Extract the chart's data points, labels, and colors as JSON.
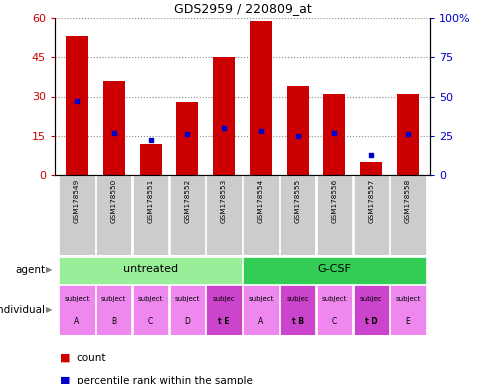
{
  "title": "GDS2959 / 220809_at",
  "samples": [
    "GSM178549",
    "GSM178550",
    "GSM178551",
    "GSM178552",
    "GSM178553",
    "GSM178554",
    "GSM178555",
    "GSM178556",
    "GSM178557",
    "GSM178558"
  ],
  "counts": [
    53,
    36,
    12,
    28,
    45,
    59,
    34,
    31,
    5,
    31
  ],
  "percentile_ranks": [
    47,
    27,
    22,
    26,
    30,
    28,
    25,
    27,
    13,
    26
  ],
  "ylim_left": [
    0,
    60
  ],
  "ylim_right": [
    0,
    100
  ],
  "yticks_left": [
    0,
    15,
    30,
    45,
    60
  ],
  "ytick_labels_left": [
    "0",
    "15",
    "30",
    "45",
    "60"
  ],
  "ytick_labels_right": [
    "0",
    "25",
    "50",
    "75",
    "100%"
  ],
  "agent_color_untreated": "#99ee99",
  "agent_color_gcsf": "#33cc55",
  "individual_color_normal": "#ee88ee",
  "individual_color_highlight": "#cc44cc",
  "bar_color": "#cc0000",
  "blue_color": "#0000cc",
  "grid_color": "#888888",
  "axis_color_left": "#cc0000",
  "axis_color_right": "#0000cc",
  "xlabel_area_bg": "#cccccc",
  "bar_width": 0.6,
  "individual_labels_line1": [
    "subject",
    "subject",
    "subject",
    "subject",
    "subjec",
    "subject",
    "subjec",
    "subject",
    "subjec",
    "subject"
  ],
  "individual_labels_line2": [
    "A",
    "B",
    "C",
    "D",
    "t E",
    "A",
    "t B",
    "C",
    "t D",
    "E"
  ],
  "individual_highlight": [
    4,
    6,
    8
  ]
}
